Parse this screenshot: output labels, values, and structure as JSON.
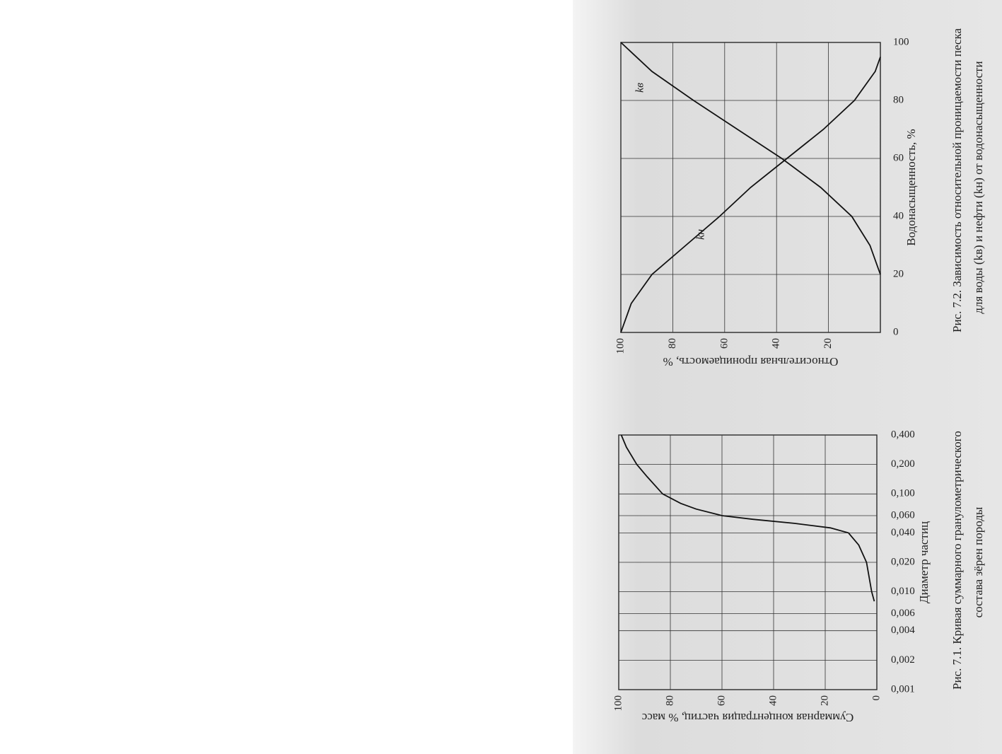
{
  "chart_data": [
    {
      "type": "line",
      "caption_lines": [
        "Рис. 7.1. Кривая суммарного гранулометрического",
        "состава зёрен породы"
      ],
      "x_label": "Диаметр частиц",
      "y_label": "Суммарная концентрация частиц, % масс",
      "x_scale": "log",
      "xlim": [
        0.001,
        0.4
      ],
      "xticks": [
        {
          "value": 0.001,
          "label": "0,001"
        },
        {
          "value": 0.002,
          "label": "0,002"
        },
        {
          "value": 0.004,
          "label": "0,004"
        },
        {
          "value": 0.006,
          "label": "0,006"
        },
        {
          "value": 0.01,
          "label": "0,010"
        },
        {
          "value": 0.02,
          "label": "0,020"
        },
        {
          "value": 0.04,
          "label": "0,040"
        },
        {
          "value": 0.06,
          "label": "0,060"
        },
        {
          "value": 0.1,
          "label": "0,100"
        },
        {
          "value": 0.2,
          "label": "0,200"
        },
        {
          "value": 0.4,
          "label": "0,400"
        }
      ],
      "ylim": [
        0,
        100
      ],
      "yticks": [
        0,
        20,
        40,
        60,
        80,
        100
      ],
      "grid": true,
      "series": [
        {
          "color": "#111111",
          "x": [
            0.008,
            0.01,
            0.02,
            0.03,
            0.04,
            0.045,
            0.05,
            0.055,
            0.06,
            0.07,
            0.08,
            0.1,
            0.15,
            0.2,
            0.3,
            0.4
          ],
          "values": [
            1,
            2,
            4,
            7,
            11,
            18,
            32,
            48,
            60,
            70,
            76,
            83,
            89,
            93,
            97,
            99
          ]
        }
      ]
    },
    {
      "type": "line",
      "caption_lines": [
        "Рис. 7.2. Зависимость относительной проницаемости песка",
        "для воды (kв) и нефти (kн) от водонасыщенности"
      ],
      "x_label": "Водонасыщенность, %",
      "y_label": "Относительная проницаемость, %",
      "xlim": [
        0,
        100
      ],
      "xticks": [
        0,
        20,
        40,
        60,
        80,
        100
      ],
      "ylim": [
        0,
        100
      ],
      "yticks": [
        20,
        40,
        60,
        80,
        100
      ],
      "grid": true,
      "series": [
        {
          "name": "kн",
          "color": "#111111",
          "x": [
            0,
            10,
            20,
            30,
            40,
            50,
            60,
            70,
            80,
            90,
            95
          ],
          "values": [
            100,
            96,
            88,
            75,
            62,
            50,
            36,
            22,
            10,
            2,
            0
          ]
        },
        {
          "name": "kв",
          "color": "#111111",
          "x": [
            20,
            30,
            40,
            50,
            60,
            70,
            80,
            90,
            100
          ],
          "values": [
            0,
            4,
            11,
            23,
            38,
            55,
            72,
            88,
            100
          ]
        }
      ]
    }
  ]
}
